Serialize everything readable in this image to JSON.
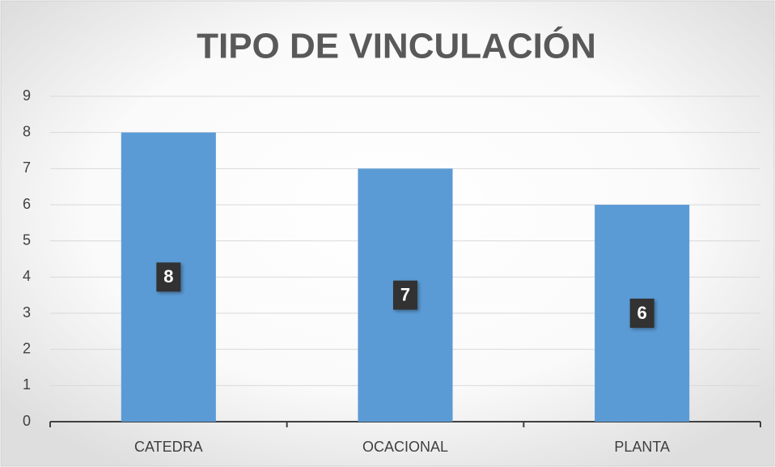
{
  "chart_data": {
    "type": "bar",
    "title": "TIPO DE VINCULACIÓN",
    "categories": [
      "CATEDRA",
      "OCACIONAL",
      "PLANTA"
    ],
    "values": [
      8,
      7,
      6
    ],
    "color": "#5b9bd5",
    "ylim": [
      0,
      9
    ],
    "yticks": [
      0,
      1,
      2,
      3,
      4,
      5,
      6,
      7,
      8,
      9
    ],
    "grid": true,
    "data_labels": true
  }
}
